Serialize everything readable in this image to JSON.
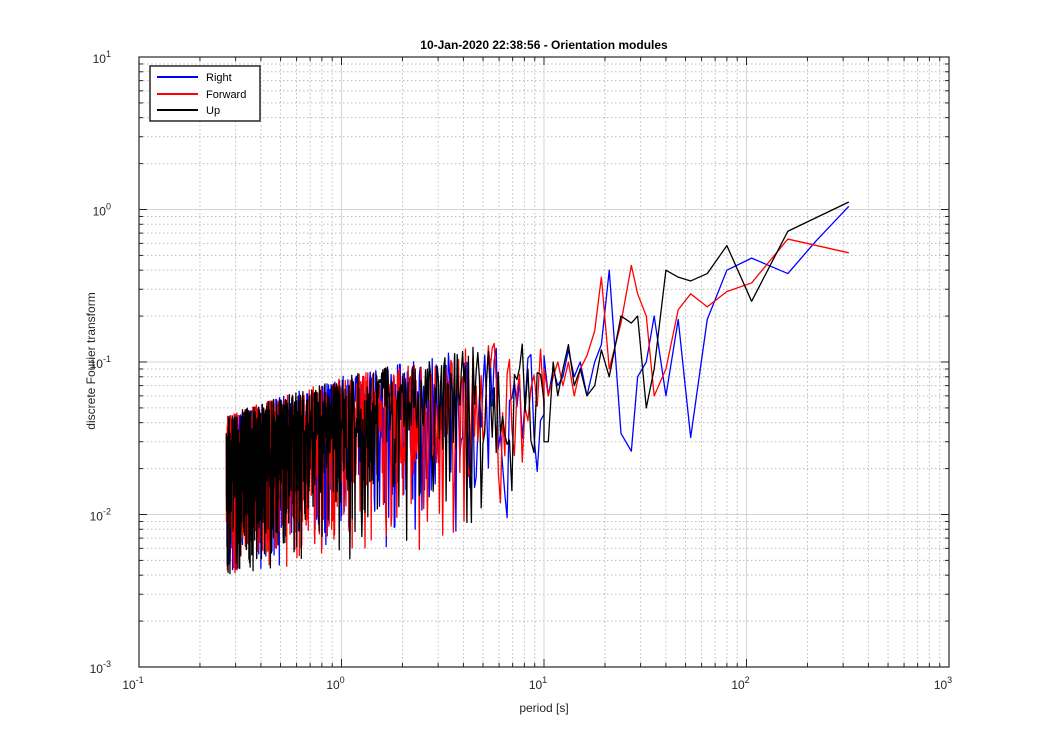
{
  "chart_data": {
    "type": "line",
    "title": "10-Jan-2020 22:38:56 - Orientation modules",
    "xlabel": "period [s]",
    "ylabel": "discrete Fourier transform",
    "xscale": "log",
    "yscale": "log",
    "xlim": [
      0.1,
      1000
    ],
    "ylim": [
      0.001,
      10
    ],
    "grid": true,
    "minor_grid": true,
    "legend_placement": "top-left",
    "x_tick_labels": [
      {
        "base": "10",
        "exp": "-1"
      },
      {
        "base": "10",
        "exp": "0"
      },
      {
        "base": "10",
        "exp": "1"
      },
      {
        "base": "10",
        "exp": "2"
      },
      {
        "base": "10",
        "exp": "3"
      }
    ],
    "y_tick_labels": [
      {
        "base": "10",
        "exp": "-3"
      },
      {
        "base": "10",
        "exp": "-2"
      },
      {
        "base": "10",
        "exp": "-1"
      },
      {
        "base": "10",
        "exp": "0"
      },
      {
        "base": "10",
        "exp": "1"
      }
    ],
    "series": [
      {
        "name": "Right",
        "color": "#0000ff",
        "points": [
          [
            320,
            1.05
          ],
          [
            220,
            0.62
          ],
          [
            160,
            0.38
          ],
          [
            106,
            0.48
          ],
          [
            80,
            0.4
          ],
          [
            64,
            0.19
          ],
          [
            53,
            0.032
          ],
          [
            46,
            0.19
          ],
          [
            40,
            0.06
          ],
          [
            35,
            0.2
          ],
          [
            32,
            0.1
          ],
          [
            29,
            0.08
          ],
          [
            27,
            0.026
          ],
          [
            24,
            0.034
          ],
          [
            21,
            0.4
          ],
          [
            19.2,
            0.13
          ],
          [
            17.8,
            0.1
          ],
          [
            16.3,
            0.06
          ],
          [
            15.1,
            0.1
          ],
          [
            14.1,
            0.08
          ],
          [
            13.2,
            0.12
          ],
          [
            12.4,
            0.08
          ],
          [
            11.7,
            0.07
          ],
          [
            11.1,
            0.09
          ],
          [
            10.5,
            0.06
          ],
          [
            10.0,
            0.11
          ]
        ]
      },
      {
        "name": "Forward",
        "color": "#ff0000",
        "points": [
          [
            320,
            0.52
          ],
          [
            160,
            0.64
          ],
          [
            106,
            0.33
          ],
          [
            80,
            0.29
          ],
          [
            64,
            0.23
          ],
          [
            53,
            0.28
          ],
          [
            46,
            0.22
          ],
          [
            40,
            0.09
          ],
          [
            35,
            0.06
          ],
          [
            32,
            0.2
          ],
          [
            29,
            0.28
          ],
          [
            27,
            0.43
          ],
          [
            24,
            0.18
          ],
          [
            21,
            0.09
          ],
          [
            19.2,
            0.36
          ],
          [
            17.8,
            0.16
          ],
          [
            16.3,
            0.11
          ],
          [
            15.1,
            0.09
          ],
          [
            14.1,
            0.06
          ],
          [
            13.2,
            0.1
          ],
          [
            12.4,
            0.07
          ],
          [
            11.7,
            0.1
          ],
          [
            11.1,
            0.08
          ],
          [
            10.5,
            0.06
          ],
          [
            10.0,
            0.09
          ]
        ]
      },
      {
        "name": "Up",
        "color": "#000000",
        "points": [
          [
            320,
            1.12
          ],
          [
            160,
            0.72
          ],
          [
            106,
            0.25
          ],
          [
            80,
            0.58
          ],
          [
            64,
            0.38
          ],
          [
            53,
            0.34
          ],
          [
            46,
            0.36
          ],
          [
            40,
            0.4
          ],
          [
            35,
            0.09
          ],
          [
            32,
            0.05
          ],
          [
            29,
            0.2
          ],
          [
            27,
            0.18
          ],
          [
            24,
            0.2
          ],
          [
            21,
            0.08
          ],
          [
            19.2,
            0.12
          ],
          [
            17.8,
            0.07
          ],
          [
            16.3,
            0.06
          ],
          [
            15.1,
            0.09
          ],
          [
            14.1,
            0.07
          ],
          [
            13.2,
            0.13
          ],
          [
            12.4,
            0.09
          ],
          [
            11.7,
            0.06
          ],
          [
            11.1,
            0.1
          ],
          [
            10.5,
            0.03
          ],
          [
            10.0,
            0.03
          ]
        ]
      }
    ],
    "noise_band": {
      "x_range": [
        0.27,
        10
      ],
      "description_free": true,
      "upper_envelope": [
        [
          0.27,
          0.045
        ],
        [
          1.0,
          0.08
        ],
        [
          3.0,
          0.11
        ],
        [
          6.0,
          0.14
        ],
        [
          10.0,
          0.13
        ]
      ],
      "lower_envelope": [
        [
          0.27,
          0.004
        ],
        [
          1.0,
          0.005
        ],
        [
          3.0,
          0.006
        ],
        [
          6.0,
          0.009
        ],
        [
          10.0,
          0.012
        ]
      ]
    }
  }
}
